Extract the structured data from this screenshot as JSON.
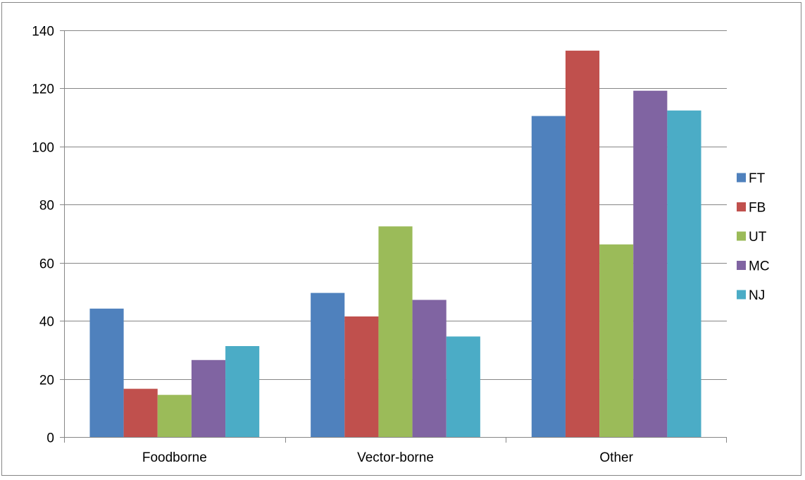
{
  "chart_data": {
    "type": "bar",
    "title": "",
    "xlabel": "",
    "ylabel": "",
    "categories": [
      "Foodborne",
      "Vector-borne",
      "Other"
    ],
    "series": [
      {
        "name": "FT",
        "color": "#4F81BD",
        "values": [
          44.2,
          49.6,
          110.5
        ]
      },
      {
        "name": "FB",
        "color": "#C0504D",
        "values": [
          16.6,
          41.5,
          133.0
        ]
      },
      {
        "name": "UT",
        "color": "#9BBB59",
        "values": [
          14.5,
          72.5,
          66.3
        ]
      },
      {
        "name": "MC",
        "color": "#8064A2",
        "values": [
          26.5,
          47.2,
          119.2
        ]
      },
      {
        "name": "NJ",
        "color": "#4BACC6",
        "values": [
          31.3,
          34.6,
          112.4
        ]
      }
    ],
    "ylim": [
      0,
      140
    ],
    "yticks": [
      "0",
      "20",
      "40",
      "60",
      "80",
      "100",
      "120",
      "140"
    ],
    "grid": true,
    "legend_position": "right"
  }
}
